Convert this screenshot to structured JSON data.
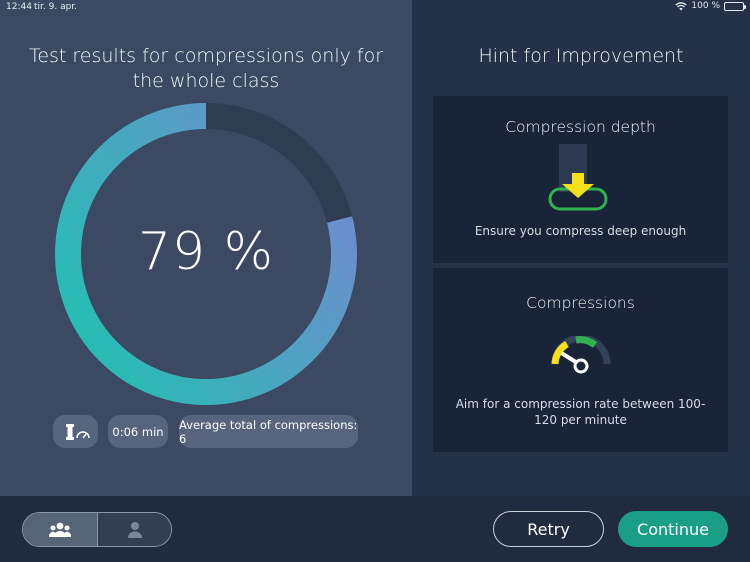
{
  "status_bar": {
    "time": "12:44",
    "date": "tir. 9. apr.",
    "battery": "100 %"
  },
  "results": {
    "title": "Test results for compressions only for the whole class",
    "score_label": "79 %",
    "score_fraction": 0.79,
    "duration": "0:06 min",
    "average": "Average total of compressions: 6",
    "colors": {
      "track": "#2f3c52",
      "start": "#1ec3b0",
      "end": "#6a90cc"
    }
  },
  "hints": {
    "title": "Hint for Improvement",
    "cards": [
      {
        "title": "Compression depth",
        "text": "Ensure you compress deep enough",
        "icon": "compression-depth-icon"
      },
      {
        "title": "Compressions",
        "text": "Aim for a compression rate between 100-120 per minute",
        "icon": "compression-rate-gauge-icon"
      }
    ]
  },
  "bottom": {
    "toggle": [
      {
        "icon": "group-icon",
        "active": true
      },
      {
        "icon": "person-icon",
        "active": false
      }
    ],
    "retry_label": "Retry",
    "continue_label": "Continue",
    "colors": {
      "continue": "#1a9e86"
    }
  }
}
